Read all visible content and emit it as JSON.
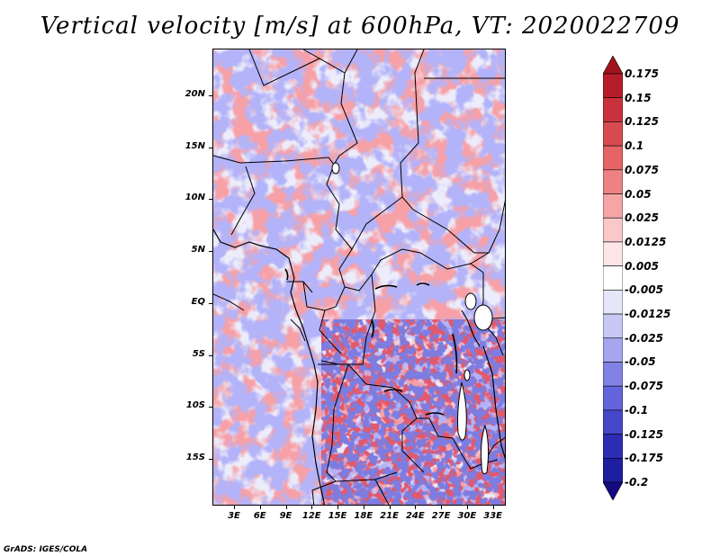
{
  "title": "Vertical velocity [m/s] at 600hPa, VT: 2020022709",
  "credit": "GrADS: IGES/COLA",
  "map": {
    "region": "Central Africa",
    "lat_labels": [
      "20N",
      "15N",
      "10N",
      "5N",
      "EQ",
      "5S",
      "10S",
      "15S"
    ],
    "lon_labels": [
      "3E",
      "6E",
      "9E",
      "12E",
      "15E",
      "18E",
      "21E",
      "24E",
      "27E",
      "30E",
      "33E"
    ],
    "lat_range": [
      -19.5,
      24.5
    ],
    "lon_range": [
      0.5,
      34.5
    ]
  },
  "colorbar": {
    "labels": [
      "0.175",
      "0.15",
      "0.125",
      "0.1",
      "0.075",
      "0.05",
      "0.025",
      "0.0125",
      "0.005",
      "-0.005",
      "-0.0125",
      "-0.025",
      "-0.05",
      "-0.075",
      "-0.1",
      "-0.125",
      "-0.175",
      "-0.2"
    ],
    "colors": [
      "#a0141e",
      "#b41e28",
      "#c8323c",
      "#d74b50",
      "#e66464",
      "#ee8282",
      "#f5a5a5",
      "#fac8c8",
      "#fde6e6",
      "#ffffff",
      "#e6e6fa",
      "#c8c8f5",
      "#a5a5f0",
      "#8282e6",
      "#6464dc",
      "#4646c8",
      "#2d2db4",
      "#1e1ea0",
      "#140a82"
    ]
  }
}
